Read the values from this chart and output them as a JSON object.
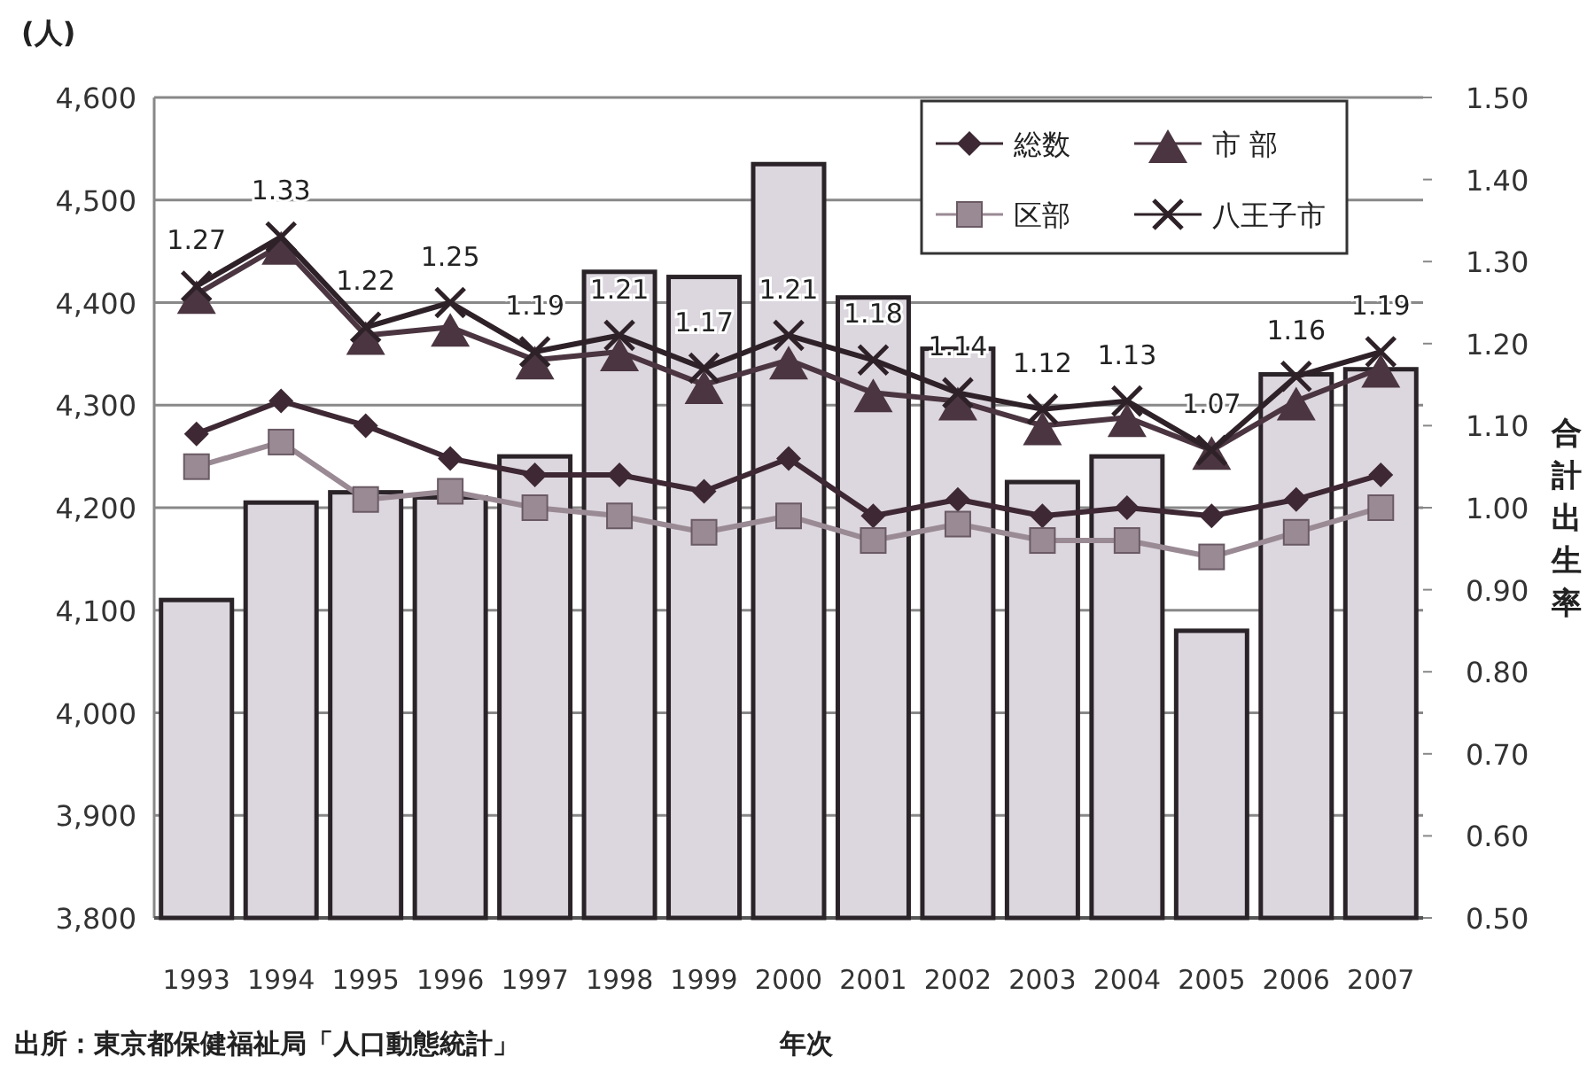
{
  "chart_data": {
    "type": "bar",
    "ylabel": "(人)",
    "y2label": "合計出生率",
    "xlabel": "年次",
    "annotations": [
      "出所：東京都保健福祉局「人口動態統計」"
    ],
    "categories": [
      "1993",
      "1994",
      "1995",
      "1996",
      "1997",
      "1998",
      "1999",
      "2000",
      "2001",
      "2002",
      "2003",
      "2004",
      "2005",
      "2006",
      "2007"
    ],
    "ylim": [
      3800,
      4600
    ],
    "yticks": [
      {
        "value": 3800,
        "label": "3,800"
      },
      {
        "value": 3900,
        "label": "3,900"
      },
      {
        "value": 4000,
        "label": "4,000"
      },
      {
        "value": 4100,
        "label": "4,100"
      },
      {
        "value": 4200,
        "label": "4,200"
      },
      {
        "value": 4300,
        "label": "4,300"
      },
      {
        "value": 4400,
        "label": "4,400"
      },
      {
        "value": 4500,
        "label": "4,500"
      },
      {
        "value": 4600,
        "label": "4,600"
      }
    ],
    "y2lim": [
      0.5,
      1.5
    ],
    "y2ticks": [
      {
        "value": 0.5,
        "label": "0.50"
      },
      {
        "value": 0.6,
        "label": "0.60"
      },
      {
        "value": 0.7,
        "label": "0.70"
      },
      {
        "value": 0.8,
        "label": "0.80"
      },
      {
        "value": 0.9,
        "label": "0.90"
      },
      {
        "value": 1.0,
        "label": "1.00"
      },
      {
        "value": 1.1,
        "label": "1.10"
      },
      {
        "value": 1.2,
        "label": "1.20"
      },
      {
        "value": 1.3,
        "label": "1.30"
      },
      {
        "value": 1.4,
        "label": "1.40"
      },
      {
        "value": 1.5,
        "label": "1.50"
      }
    ],
    "grid": "y",
    "legend": "top right",
    "series": [
      {
        "color": "#dcd6de",
        "values": [
          4110,
          4205,
          4215,
          4210,
          4250,
          4430,
          4425,
          4535,
          4405,
          4355,
          4225,
          4250,
          4080,
          4330,
          4335
        ]
      },
      {
        "type": "line",
        "axis": "y2",
        "name": "総数",
        "color": "#3d2833",
        "marker": "diamond",
        "values": [
          1.09,
          1.13,
          1.1,
          1.06,
          1.04,
          1.04,
          1.02,
          1.06,
          0.99,
          1.01,
          0.99,
          1.0,
          0.99,
          1.01,
          1.04
        ]
      },
      {
        "type": "line",
        "axis": "y2",
        "name": "市 部",
        "color": "#4a3540",
        "marker": "triangle",
        "values": [
          1.26,
          1.32,
          1.21,
          1.22,
          1.18,
          1.19,
          1.15,
          1.18,
          1.14,
          1.13,
          1.1,
          1.11,
          1.07,
          1.13,
          1.17
        ]
      },
      {
        "type": "line",
        "axis": "y2",
        "name": "区部",
        "color": "#9a8a94",
        "marker": "square",
        "values": [
          1.05,
          1.08,
          1.01,
          1.02,
          1.0,
          0.99,
          0.97,
          0.99,
          0.96,
          0.98,
          0.96,
          0.96,
          0.94,
          0.97,
          1.0
        ]
      },
      {
        "type": "line",
        "axis": "y2",
        "name": "八王子市",
        "color": "#2e2228",
        "marker": "cross",
        "values": [
          1.27,
          1.33,
          1.22,
          1.25,
          1.19,
          1.21,
          1.17,
          1.21,
          1.18,
          1.14,
          1.12,
          1.13,
          1.07,
          1.16,
          1.19
        ],
        "value_labels": [
          "1.27",
          "1.33",
          "1.22",
          "1.25",
          "1.19",
          "1.21",
          "1.17",
          "1.21",
          "1.18",
          "1.14",
          "1.12",
          "1.13",
          "1.07",
          "1.16",
          "1.19"
        ]
      }
    ]
  }
}
